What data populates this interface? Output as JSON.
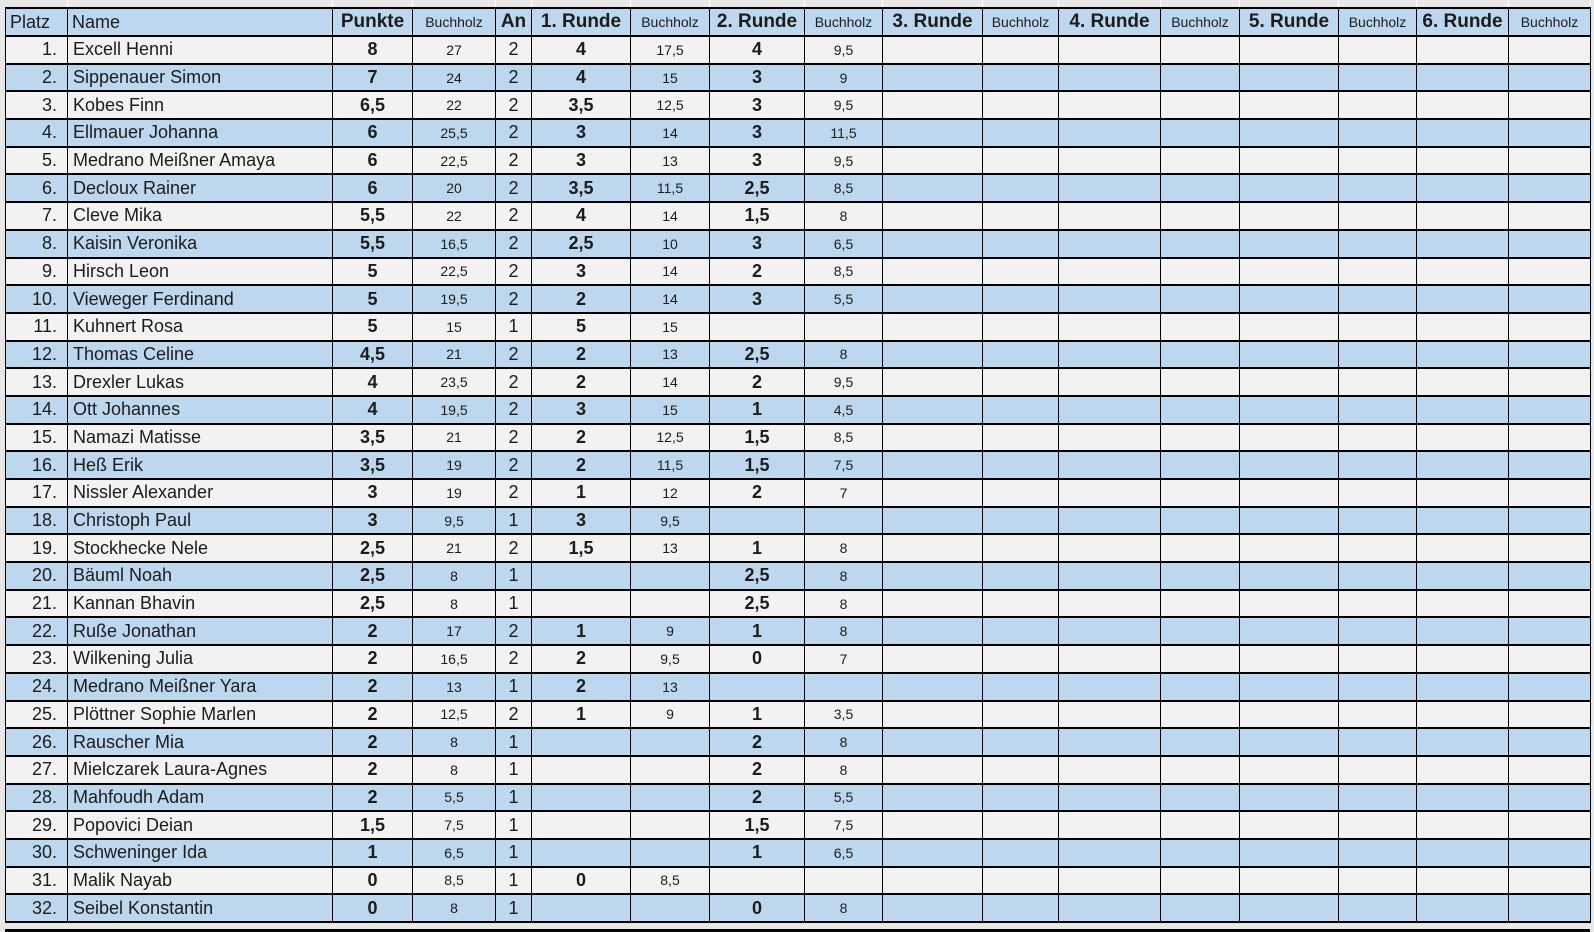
{
  "colors": {
    "page_bg": "#e7e7e7",
    "row_blue": "#bdd7ee",
    "row_gray": "#f2f2f2",
    "border": "#000000",
    "text": "#1c1c1c"
  },
  "table": {
    "headers": [
      "Platz",
      "Name",
      "Punkte",
      "Buchholz",
      "An",
      "1. Runde",
      "Buchholz",
      "2. Runde",
      "Buchholz",
      "3. Runde",
      "Buchholz",
      "4. Runde",
      "Buchholz",
      "5. Runde",
      "Buchholz",
      "6. Runde",
      "Buchholz"
    ],
    "rows": [
      [
        "1.",
        "Excell Henni",
        "8",
        "27",
        "2",
        "4",
        "17,5",
        "4",
        "9,5",
        "",
        "",
        "",
        "",
        "",
        "",
        "",
        ""
      ],
      [
        "2.",
        "Sippenauer Simon",
        "7",
        "24",
        "2",
        "4",
        "15",
        "3",
        "9",
        "",
        "",
        "",
        "",
        "",
        "",
        "",
        ""
      ],
      [
        "3.",
        "Kobes Finn",
        "6,5",
        "22",
        "2",
        "3,5",
        "12,5",
        "3",
        "9,5",
        "",
        "",
        "",
        "",
        "",
        "",
        "",
        ""
      ],
      [
        "4.",
        "Ellmauer Johanna",
        "6",
        "25,5",
        "2",
        "3",
        "14",
        "3",
        "11,5",
        "",
        "",
        "",
        "",
        "",
        "",
        "",
        ""
      ],
      [
        "5.",
        "Medrano Meißner Amaya",
        "6",
        "22,5",
        "2",
        "3",
        "13",
        "3",
        "9,5",
        "",
        "",
        "",
        "",
        "",
        "",
        "",
        ""
      ],
      [
        "6.",
        "Decloux Rainer",
        "6",
        "20",
        "2",
        "3,5",
        "11,5",
        "2,5",
        "8,5",
        "",
        "",
        "",
        "",
        "",
        "",
        "",
        ""
      ],
      [
        "7.",
        "Cleve Mika",
        "5,5",
        "22",
        "2",
        "4",
        "14",
        "1,5",
        "8",
        "",
        "",
        "",
        "",
        "",
        "",
        "",
        ""
      ],
      [
        "8.",
        "Kaisin Veronika",
        "5,5",
        "16,5",
        "2",
        "2,5",
        "10",
        "3",
        "6,5",
        "",
        "",
        "",
        "",
        "",
        "",
        "",
        ""
      ],
      [
        "9.",
        "Hirsch Leon",
        "5",
        "22,5",
        "2",
        "3",
        "14",
        "2",
        "8,5",
        "",
        "",
        "",
        "",
        "",
        "",
        "",
        ""
      ],
      [
        "10.",
        "Vieweger Ferdinand",
        "5",
        "19,5",
        "2",
        "2",
        "14",
        "3",
        "5,5",
        "",
        "",
        "",
        "",
        "",
        "",
        "",
        ""
      ],
      [
        "11.",
        "Kuhnert Rosa",
        "5",
        "15",
        "1",
        "5",
        "15",
        "",
        "",
        "",
        "",
        "",
        "",
        "",
        "",
        "",
        ""
      ],
      [
        "12.",
        "Thomas Celine",
        "4,5",
        "21",
        "2",
        "2",
        "13",
        "2,5",
        "8",
        "",
        "",
        "",
        "",
        "",
        "",
        "",
        ""
      ],
      [
        "13.",
        "Drexler Lukas",
        "4",
        "23,5",
        "2",
        "2",
        "14",
        "2",
        "9,5",
        "",
        "",
        "",
        "",
        "",
        "",
        "",
        ""
      ],
      [
        "14.",
        "Ott Johannes",
        "4",
        "19,5",
        "2",
        "3",
        "15",
        "1",
        "4,5",
        "",
        "",
        "",
        "",
        "",
        "",
        "",
        ""
      ],
      [
        "15.",
        "Namazi Matisse",
        "3,5",
        "21",
        "2",
        "2",
        "12,5",
        "1,5",
        "8,5",
        "",
        "",
        "",
        "",
        "",
        "",
        "",
        ""
      ],
      [
        "16.",
        "Heß Erik",
        "3,5",
        "19",
        "2",
        "2",
        "11,5",
        "1,5",
        "7,5",
        "",
        "",
        "",
        "",
        "",
        "",
        "",
        ""
      ],
      [
        "17.",
        "Nissler Alexander",
        "3",
        "19",
        "2",
        "1",
        "12",
        "2",
        "7",
        "",
        "",
        "",
        "",
        "",
        "",
        "",
        ""
      ],
      [
        "18.",
        "Christoph Paul",
        "3",
        "9,5",
        "1",
        "3",
        "9,5",
        "",
        "",
        "",
        "",
        "",
        "",
        "",
        "",
        "",
        ""
      ],
      [
        "19.",
        "Stockhecke Nele",
        "2,5",
        "21",
        "2",
        "1,5",
        "13",
        "1",
        "8",
        "",
        "",
        "",
        "",
        "",
        "",
        "",
        ""
      ],
      [
        "20.",
        "Bäuml Noah",
        "2,5",
        "8",
        "1",
        "",
        "",
        "2,5",
        "8",
        "",
        "",
        "",
        "",
        "",
        "",
        "",
        ""
      ],
      [
        "21.",
        "Kannan Bhavin",
        "2,5",
        "8",
        "1",
        "",
        "",
        "2,5",
        "8",
        "",
        "",
        "",
        "",
        "",
        "",
        "",
        ""
      ],
      [
        "22.",
        "Ruße Jonathan",
        "2",
        "17",
        "2",
        "1",
        "9",
        "1",
        "8",
        "",
        "",
        "",
        "",
        "",
        "",
        "",
        ""
      ],
      [
        "23.",
        "Wilkening Julia",
        "2",
        "16,5",
        "2",
        "2",
        "9,5",
        "0",
        "7",
        "",
        "",
        "",
        "",
        "",
        "",
        "",
        ""
      ],
      [
        "24.",
        "Medrano Meißner Yara",
        "2",
        "13",
        "1",
        "2",
        "13",
        "",
        "",
        "",
        "",
        "",
        "",
        "",
        "",
        "",
        ""
      ],
      [
        "25.",
        "Plöttner Sophie Marlen",
        "2",
        "12,5",
        "2",
        "1",
        "9",
        "1",
        "3,5",
        "",
        "",
        "",
        "",
        "",
        "",
        "",
        ""
      ],
      [
        "26.",
        "Rauscher Mia",
        "2",
        "8",
        "1",
        "",
        "",
        "2",
        "8",
        "",
        "",
        "",
        "",
        "",
        "",
        "",
        ""
      ],
      [
        "27.",
        "Mielczarek Laura-Agnes",
        "2",
        "8",
        "1",
        "",
        "",
        "2",
        "8",
        "",
        "",
        "",
        "",
        "",
        "",
        "",
        ""
      ],
      [
        "28.",
        "Mahfoudh Adam",
        "2",
        "5,5",
        "1",
        "",
        "",
        "2",
        "5,5",
        "",
        "",
        "",
        "",
        "",
        "",
        "",
        ""
      ],
      [
        "29.",
        "Popovici Deian",
        "1,5",
        "7,5",
        "1",
        "",
        "",
        "1,5",
        "7,5",
        "",
        "",
        "",
        "",
        "",
        "",
        "",
        ""
      ],
      [
        "30.",
        "Schweninger Ida",
        "1",
        "6,5",
        "1",
        "",
        "",
        "1",
        "6,5",
        "",
        "",
        "",
        "",
        "",
        "",
        "",
        ""
      ],
      [
        "31.",
        "Malik Nayab",
        "0",
        "8,5",
        "1",
        "0",
        "8,5",
        "",
        "",
        "",
        "",
        "",
        "",
        "",
        "",
        "",
        ""
      ],
      [
        "32.",
        "Seibel Konstantin",
        "0",
        "8",
        "1",
        "",
        "",
        "0",
        "8",
        "",
        "",
        "",
        "",
        "",
        "",
        "",
        ""
      ]
    ]
  }
}
